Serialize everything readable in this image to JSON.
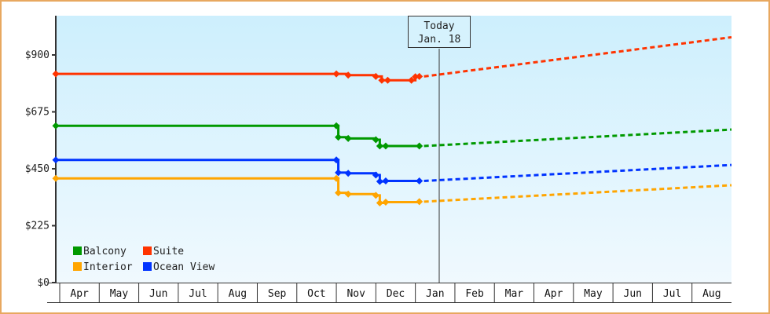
{
  "chart_data": {
    "type": "line",
    "title": "",
    "xlabel": "",
    "ylabel": "",
    "ylim": [
      0,
      1050
    ],
    "yticks": [
      {
        "value": 0,
        "label": "$0"
      },
      {
        "value": 225,
        "label": "$225"
      },
      {
        "value": 450,
        "label": "$450"
      },
      {
        "value": 675,
        "label": "$675"
      },
      {
        "value": 900,
        "label": "$900"
      }
    ],
    "months": [
      "Apr",
      "May",
      "Jun",
      "Jul",
      "Aug",
      "Sep",
      "Oct",
      "Nov",
      "Dec",
      "Jan",
      "Feb",
      "Mar",
      "Apr",
      "May",
      "Jun",
      "Jul",
      "Aug"
    ],
    "today_marker": {
      "line1": "Today",
      "line2": "Jan. 18"
    },
    "grid": false,
    "legend_position": "lower-left",
    "series": [
      {
        "name": "Suite",
        "color": "#ff3300",
        "history": [
          [
            0,
            825
          ],
          [
            7.0,
            825
          ],
          [
            7.3,
            820
          ],
          [
            8.0,
            815
          ],
          [
            8.15,
            800
          ],
          [
            8.3,
            800
          ],
          [
            8.9,
            800
          ],
          [
            9.0,
            814
          ],
          [
            9.1,
            815
          ]
        ],
        "forecast": [
          [
            9.1,
            815
          ],
          [
            17.0,
            970
          ]
        ]
      },
      {
        "name": "Balcony",
        "color": "#009900",
        "history": [
          [
            0,
            620
          ],
          [
            7.0,
            620
          ],
          [
            7.05,
            575
          ],
          [
            7.3,
            570
          ],
          [
            8.0,
            565
          ],
          [
            8.1,
            540
          ],
          [
            8.25,
            540
          ],
          [
            9.1,
            540
          ]
        ],
        "forecast": [
          [
            9.1,
            540
          ],
          [
            17.0,
            605
          ]
        ]
      },
      {
        "name": "Ocean View",
        "color": "#0033ff",
        "history": [
          [
            0,
            485
          ],
          [
            7.0,
            485
          ],
          [
            7.05,
            435
          ],
          [
            7.3,
            432
          ],
          [
            8.0,
            425
          ],
          [
            8.1,
            400
          ],
          [
            8.25,
            402
          ],
          [
            9.1,
            402
          ]
        ],
        "forecast": [
          [
            9.1,
            402
          ],
          [
            17.0,
            465
          ]
        ]
      },
      {
        "name": "Interior",
        "color": "#ffa500",
        "history": [
          [
            0,
            412
          ],
          [
            7.0,
            412
          ],
          [
            7.05,
            355
          ],
          [
            7.3,
            350
          ],
          [
            8.0,
            345
          ],
          [
            8.1,
            315
          ],
          [
            8.25,
            318
          ],
          [
            9.1,
            320
          ]
        ],
        "forecast": [
          [
            9.1,
            320
          ],
          [
            17.0,
            385
          ]
        ]
      }
    ]
  },
  "legend": [
    {
      "name": "Balcony",
      "color": "#009900"
    },
    {
      "name": "Suite",
      "color": "#ff3300"
    },
    {
      "name": "Interior",
      "color": "#ffa500"
    },
    {
      "name": "Ocean View",
      "color": "#0033ff"
    }
  ]
}
